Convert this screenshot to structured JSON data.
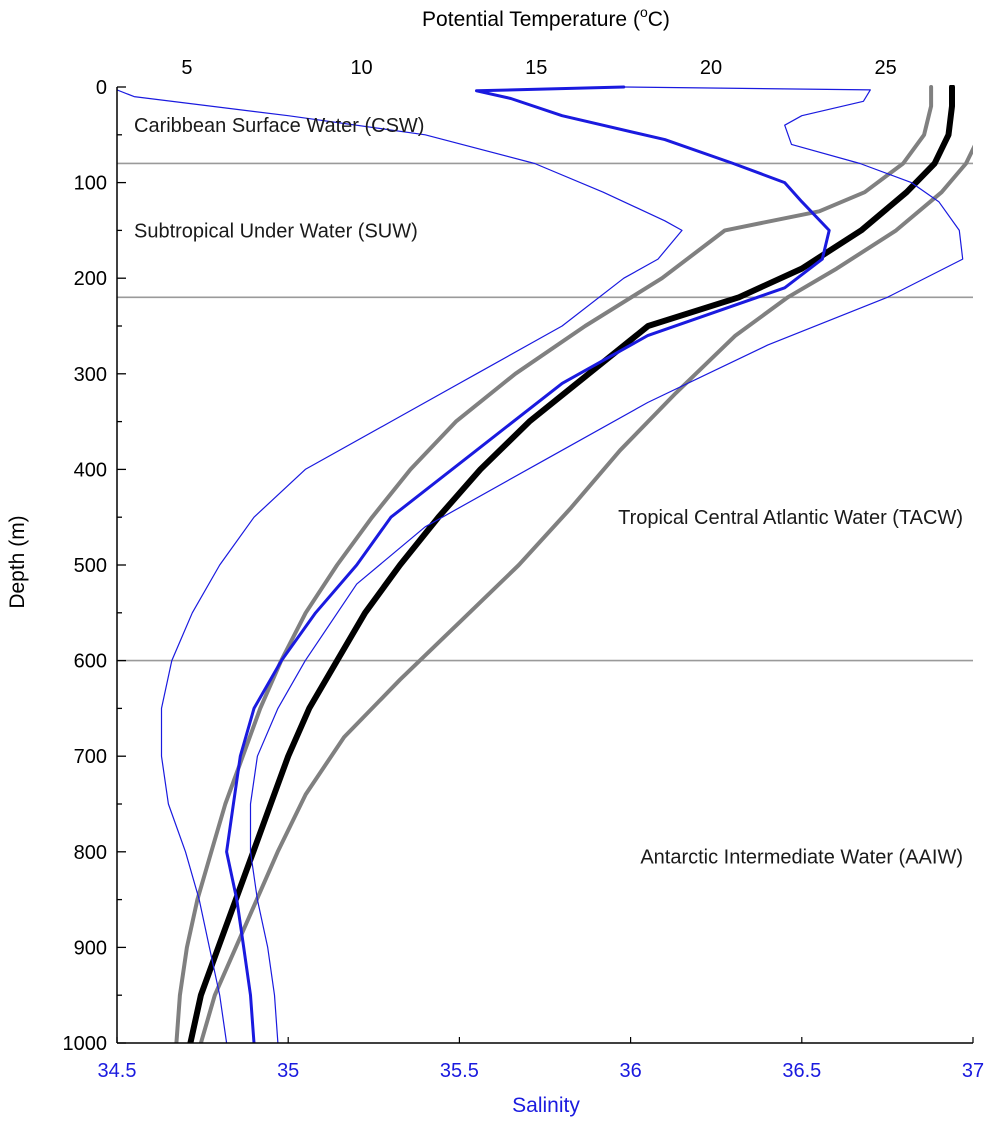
{
  "chart_data": {
    "type": "line",
    "title": "",
    "top_axis": {
      "label": "Potential Temperature",
      "unit_prefix": "(",
      "unit_super": "o",
      "unit_suffix": "C)",
      "range": [
        3,
        27.5
      ],
      "ticks": [
        5,
        10,
        15,
        20,
        25
      ]
    },
    "bottom_axis": {
      "label": "Salinity",
      "range": [
        34.5,
        37
      ],
      "ticks": [
        "34.5",
        "35",
        "35.5",
        "36",
        "36.5",
        "37"
      ],
      "color": "#1a1adf"
    },
    "left_axis": {
      "label": "Depth (m)",
      "range": [
        0,
        1000
      ],
      "inverted": true,
      "ticks": [
        0,
        100,
        200,
        300,
        400,
        500,
        600,
        700,
        800,
        900,
        1000
      ]
    },
    "water_mass_boundaries": [
      80,
      220,
      600
    ],
    "annotations": [
      {
        "text": "Caribbean Surface Water (CSW)",
        "depth": 40,
        "align": "start"
      },
      {
        "text": "Subtropical Under Water (SUW)",
        "depth": 150,
        "align": "start"
      },
      {
        "text": "Tropical Central Atlantic Water (TACW)",
        "depth": 450,
        "align": "end"
      },
      {
        "text": "Antarctic Intermediate Water (AAIW)",
        "depth": 805,
        "align": "end"
      }
    ],
    "series": [
      {
        "axis": "temperature",
        "role": "mean",
        "color": "#000000",
        "width": 6,
        "points": [
          [
            26.9,
            0
          ],
          [
            26.9,
            20
          ],
          [
            26.8,
            50
          ],
          [
            26.4,
            80
          ],
          [
            25.6,
            110
          ],
          [
            24.3,
            150
          ],
          [
            22.6,
            190
          ],
          [
            20.8,
            220
          ],
          [
            18.2,
            250
          ],
          [
            16.5,
            300
          ],
          [
            14.8,
            350
          ],
          [
            13.4,
            400
          ],
          [
            12.2,
            450
          ],
          [
            11.1,
            500
          ],
          [
            10.1,
            550
          ],
          [
            9.3,
            600
          ],
          [
            8.5,
            650
          ],
          [
            7.9,
            700
          ],
          [
            7.4,
            750
          ],
          [
            6.9,
            800
          ],
          [
            6.4,
            850
          ],
          [
            5.9,
            900
          ],
          [
            5.4,
            950
          ],
          [
            5.1,
            1000
          ]
        ]
      },
      {
        "axis": "temperature",
        "role": "mean+sd",
        "color": "#808080",
        "width": 4,
        "points": [
          [
            27.8,
            0
          ],
          [
            27.8,
            20
          ],
          [
            27.7,
            50
          ],
          [
            27.3,
            80
          ],
          [
            26.6,
            110
          ],
          [
            25.3,
            150
          ],
          [
            23.6,
            190
          ],
          [
            22.2,
            220
          ],
          [
            20.7,
            260
          ],
          [
            19.0,
            320
          ],
          [
            17.4,
            380
          ],
          [
            16.0,
            440
          ],
          [
            14.5,
            500
          ],
          [
            12.8,
            560
          ],
          [
            11.1,
            620
          ],
          [
            9.5,
            680
          ],
          [
            8.4,
            740
          ],
          [
            7.6,
            800
          ],
          [
            7.0,
            850
          ],
          [
            6.4,
            900
          ],
          [
            5.8,
            950
          ],
          [
            5.4,
            1000
          ]
        ]
      },
      {
        "axis": "temperature",
        "role": "mean-sd",
        "color": "#808080",
        "width": 4,
        "points": [
          [
            26.3,
            0
          ],
          [
            26.3,
            20
          ],
          [
            26.1,
            50
          ],
          [
            25.5,
            80
          ],
          [
            24.4,
            110
          ],
          [
            23.1,
            130
          ],
          [
            20.4,
            150
          ],
          [
            18.6,
            200
          ],
          [
            16.4,
            250
          ],
          [
            14.4,
            300
          ],
          [
            12.7,
            350
          ],
          [
            11.4,
            400
          ],
          [
            10.3,
            450
          ],
          [
            9.3,
            500
          ],
          [
            8.4,
            550
          ],
          [
            7.7,
            600
          ],
          [
            7.1,
            650
          ],
          [
            6.6,
            700
          ],
          [
            6.1,
            750
          ],
          [
            5.7,
            800
          ],
          [
            5.3,
            850
          ],
          [
            5.0,
            900
          ],
          [
            4.8,
            950
          ],
          [
            4.7,
            1000
          ]
        ]
      },
      {
        "axis": "salinity",
        "role": "mean",
        "color": "#1a1adf",
        "width": 3,
        "points": [
          [
            35.98,
            0
          ],
          [
            35.55,
            4
          ],
          [
            35.65,
            12
          ],
          [
            35.8,
            30
          ],
          [
            36.1,
            55
          ],
          [
            36.3,
            80
          ],
          [
            36.45,
            100
          ],
          [
            36.5,
            120
          ],
          [
            36.58,
            150
          ],
          [
            36.56,
            180
          ],
          [
            36.45,
            210
          ],
          [
            36.05,
            260
          ],
          [
            35.8,
            310
          ],
          [
            35.55,
            380
          ],
          [
            35.3,
            450
          ],
          [
            35.2,
            500
          ],
          [
            35.08,
            550
          ],
          [
            34.98,
            600
          ],
          [
            34.9,
            650
          ],
          [
            34.86,
            700
          ],
          [
            34.84,
            750
          ],
          [
            34.82,
            800
          ],
          [
            34.85,
            850
          ],
          [
            34.87,
            900
          ],
          [
            34.89,
            950
          ],
          [
            34.9,
            1000
          ]
        ]
      },
      {
        "axis": "salinity",
        "role": "mean+sd",
        "color": "#1a1adf",
        "width": 1.2,
        "points": [
          [
            35.98,
            0
          ],
          [
            36.7,
            3
          ],
          [
            36.68,
            15
          ],
          [
            36.5,
            30
          ],
          [
            36.45,
            40
          ],
          [
            36.47,
            60
          ],
          [
            36.67,
            80
          ],
          [
            36.82,
            100
          ],
          [
            36.9,
            120
          ],
          [
            36.96,
            150
          ],
          [
            36.97,
            180
          ],
          [
            36.75,
            220
          ],
          [
            36.4,
            270
          ],
          [
            36.05,
            330
          ],
          [
            35.75,
            390
          ],
          [
            35.4,
            460
          ],
          [
            35.2,
            520
          ],
          [
            35.05,
            600
          ],
          [
            34.97,
            650
          ],
          [
            34.91,
            700
          ],
          [
            34.89,
            750
          ],
          [
            34.89,
            800
          ],
          [
            34.91,
            850
          ],
          [
            34.94,
            900
          ],
          [
            34.96,
            950
          ],
          [
            34.97,
            1000
          ]
        ]
      },
      {
        "axis": "salinity",
        "role": "mean-sd",
        "color": "#1a1adf",
        "width": 1.2,
        "points": [
          [
            34.5,
            0
          ],
          [
            34.5,
            3
          ],
          [
            34.55,
            10
          ],
          [
            35.0,
            30
          ],
          [
            35.4,
            50
          ],
          [
            35.72,
            80
          ],
          [
            35.92,
            110
          ],
          [
            36.1,
            140
          ],
          [
            36.15,
            150
          ],
          [
            36.08,
            180
          ],
          [
            35.98,
            200
          ],
          [
            35.8,
            250
          ],
          [
            35.55,
            300
          ],
          [
            35.3,
            350
          ],
          [
            35.05,
            400
          ],
          [
            34.9,
            450
          ],
          [
            34.8,
            500
          ],
          [
            34.72,
            550
          ],
          [
            34.66,
            600
          ],
          [
            34.63,
            650
          ],
          [
            34.63,
            700
          ],
          [
            34.65,
            750
          ],
          [
            34.7,
            800
          ],
          [
            34.74,
            850
          ],
          [
            34.77,
            900
          ],
          [
            34.8,
            950
          ],
          [
            34.82,
            1000
          ]
        ]
      }
    ]
  }
}
